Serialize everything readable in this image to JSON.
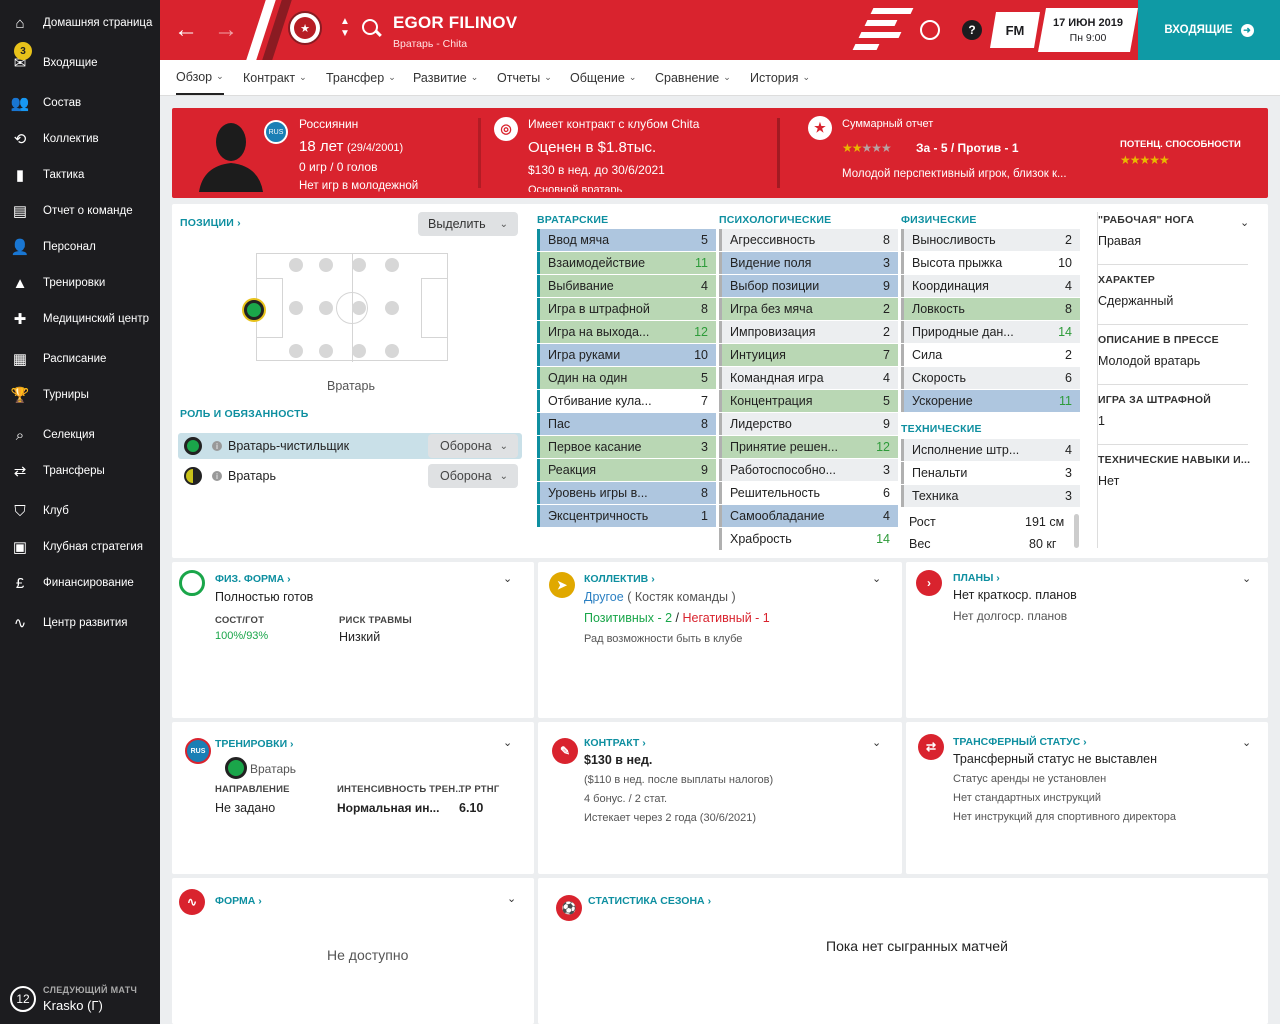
{
  "sidebar": {
    "items": [
      {
        "label": "Домашняя страница",
        "icon": "home-icon"
      },
      {
        "label": "Входящие",
        "icon": "inbox-icon",
        "badge": "3"
      },
      {
        "label": "Состав",
        "icon": "squad-icon"
      },
      {
        "label": "Коллектив",
        "icon": "dynamics-icon"
      },
      {
        "label": "Тактика",
        "icon": "tactics-icon"
      },
      {
        "label": "Отчет о команде",
        "icon": "report-icon"
      },
      {
        "label": "Персонал",
        "icon": "staff-icon"
      },
      {
        "label": "Тренировки",
        "icon": "training-icon"
      },
      {
        "label": "Медицинский центр",
        "icon": "medical-icon"
      },
      {
        "label": "Расписание",
        "icon": "calendar-icon"
      },
      {
        "label": "Турниры",
        "icon": "trophy-icon"
      },
      {
        "label": "Селекция",
        "icon": "scouting-icon"
      },
      {
        "label": "Трансферы",
        "icon": "transfers-icon"
      },
      {
        "label": "Клуб",
        "icon": "club-icon"
      },
      {
        "label": "Клубная стратегия",
        "icon": "strategy-icon"
      },
      {
        "label": "Финансирование",
        "icon": "finance-icon"
      },
      {
        "label": "Центр развития",
        "icon": "development-icon"
      }
    ],
    "next_match": {
      "label": "СЛЕДУЮЩИЙ МАТЧ",
      "value": "Krasko (Г)",
      "number": "12"
    }
  },
  "topbar": {
    "player_name": "EGOR FILINOV",
    "subtitle": "Вратарь - Chita",
    "fm_label": "FM",
    "date_top": "17 ИЮН 2019",
    "date_bottom": "Пн 9:00",
    "inbox_label": "ВХОДЯЩИЕ",
    "accent": "#d9232e",
    "inbox_color": "#0f9aa5"
  },
  "tabs": [
    "Обзор",
    "Контракт",
    "Трансфер",
    "Развитие",
    "Отчеты",
    "Общение",
    "Сравнение",
    "История"
  ],
  "header": {
    "nationality": "Россиянин",
    "age": "18 лет",
    "dob": "(29/4/2001)",
    "games": "0 игр / 0 голов",
    "youth": "Нет игр в молодежной",
    "contract_line": "Имеет контракт с клубом Chita",
    "value": "Оценен в $1.8тыс.",
    "wage": "$130 в нед. до 30/6/2021",
    "role_cut": "Основной вратарь",
    "summary_title": "Суммарный отчет",
    "summary_votes": "За - 5 / Против - 1",
    "summary_text": "Молодой перспективный игрок, близок к...",
    "potential_label": "ПОТЕНЦ. СПОСОБНОСТИ",
    "current_stars": 2,
    "potential_stars": 4.5
  },
  "positions": {
    "title": "ПОЗИЦИИ",
    "select_label": "Выделить",
    "pitch_label": "Вратарь",
    "roles_title": "РОЛЬ И ОБЯЗАННОСТЬ",
    "roles": [
      {
        "name": "Вратарь-чистильщик",
        "duty": "Оборона"
      },
      {
        "name": "Вратарь",
        "duty": "Оборона"
      }
    ]
  },
  "attributes": {
    "goalkeeping": {
      "title": "ВРАТАРСКИЕ",
      "items": [
        {
          "name": "Ввод мяча",
          "value": "5"
        },
        {
          "name": "Взаимодействие",
          "value": "11"
        },
        {
          "name": "Выбивание",
          "value": "4"
        },
        {
          "name": "Игра в штрафной",
          "value": "8"
        },
        {
          "name": "Игра на выхода...",
          "value": "12"
        },
        {
          "name": "Игра руками",
          "value": "10"
        },
        {
          "name": "Один на один",
          "value": "5"
        },
        {
          "name": "Отбивание кула...",
          "value": "7"
        },
        {
          "name": "Пас",
          "value": "8"
        },
        {
          "name": "Первое касание",
          "value": "3"
        },
        {
          "name": "Реакция",
          "value": "9"
        },
        {
          "name": "Уровень игры в...",
          "value": "8"
        },
        {
          "name": "Эксцентричность",
          "value": "1"
        }
      ]
    },
    "mental": {
      "title": "ПСИХОЛОГИЧЕСКИЕ",
      "items": [
        {
          "name": "Агрессивность",
          "value": "8"
        },
        {
          "name": "Видение поля",
          "value": "3"
        },
        {
          "name": "Выбор позиции",
          "value": "9"
        },
        {
          "name": "Игра без мяча",
          "value": "2"
        },
        {
          "name": "Импровизация",
          "value": "2"
        },
        {
          "name": "Интуиция",
          "value": "7"
        },
        {
          "name": "Командная игра",
          "value": "4"
        },
        {
          "name": "Концентрация",
          "value": "5"
        },
        {
          "name": "Лидерство",
          "value": "9"
        },
        {
          "name": "Принятие решен...",
          "value": "12"
        },
        {
          "name": "Работоспособно...",
          "value": "3"
        },
        {
          "name": "Решительность",
          "value": "6"
        },
        {
          "name": "Самообладание",
          "value": "4"
        },
        {
          "name": "Храбрость",
          "value": "14"
        }
      ]
    },
    "physical": {
      "title": "ФИЗИЧЕСКИЕ",
      "items": [
        {
          "name": "Выносливость",
          "value": "2"
        },
        {
          "name": "Высота прыжка",
          "value": "10"
        },
        {
          "name": "Координация",
          "value": "4"
        },
        {
          "name": "Ловкость",
          "value": "8"
        },
        {
          "name": "Природные дан...",
          "value": "14"
        },
        {
          "name": "Сила",
          "value": "2"
        },
        {
          "name": "Скорость",
          "value": "6"
        },
        {
          "name": "Ускорение",
          "value": "11"
        }
      ]
    },
    "technical": {
      "title": "ТЕХНИЧЕСКИЕ",
      "items": [
        {
          "name": "Исполнение штр...",
          "value": "4"
        },
        {
          "name": "Пенальти",
          "value": "3"
        },
        {
          "name": "Техника",
          "value": "3"
        }
      ]
    },
    "height_label": "Рост",
    "height": "191 см",
    "weight_label": "Вес",
    "weight": "80 кг"
  },
  "side_info": [
    {
      "label": "\"РАБОЧАЯ\" НОГА",
      "value": "Правая"
    },
    {
      "label": "ХАРАКТЕР",
      "value": "Сдержанный"
    },
    {
      "label": "ОПИСАНИЕ В ПРЕССЕ",
      "value": "Молодой вратарь"
    },
    {
      "label": "ИГРА ЗА ШТРАФНОЙ",
      "value": "1"
    },
    {
      "label": "ТЕХНИЧЕСКИЕ НАВЫКИ И...",
      "value": "Нет"
    }
  ],
  "fitness": {
    "title": "ФИЗ. ФОРМА",
    "status": "Полностью готов",
    "cond_label": "СОСТ/ГОТ",
    "cond_value": "100%/93%",
    "risk_label": "РИСК ТРАВМЫ",
    "risk_value": "Низкий"
  },
  "dynamics": {
    "title": "КОЛЛЕКТИВ",
    "group": "Другое",
    "group_note": "( Костяк команды )",
    "positive": "Позитивных - 2",
    "separator": "/",
    "negative": "Негативный - 1",
    "happy": "Рад возможности быть в клубе"
  },
  "plans": {
    "title": "ПЛАНЫ",
    "short": "Нет краткоср. планов",
    "long": "Нет долгоср. планов"
  },
  "training": {
    "title": "ТРЕНИРОВКИ",
    "role": "Вратарь",
    "focus_label": "НАПРАВЛЕНИЕ",
    "focus_value": "Не задано",
    "intensity_label": "ИНТЕНСИВНОСТЬ ТРЕН...",
    "intensity_value": "Нормальная ин...",
    "rating_label": "ТР РТНГ",
    "rating_value": "6.10"
  },
  "contract": {
    "title": "КОНТРАКТ",
    "wage": "$130 в нед.",
    "after_tax": "($110 в нед. после выплаты налогов)",
    "bonuses": "4 бонус. / 2 стат.",
    "expires": "Истекает через 2 года (30/6/2021)"
  },
  "transfer_status": {
    "title": "ТРАНСФЕРНЫЙ СТАТУС",
    "main": "Трансферный статус не выставлен",
    "loan": "Статус аренды не установлен",
    "standard": "Нет стандартных инструкций",
    "director": "Нет инструкций для спортивного директора"
  },
  "form": {
    "title": "ФОРМА",
    "text": "Не доступно"
  },
  "season_stats": {
    "title": "СТАТИСТИКА СЕЗОНА",
    "text": "Пока нет сыгранных матчей"
  }
}
